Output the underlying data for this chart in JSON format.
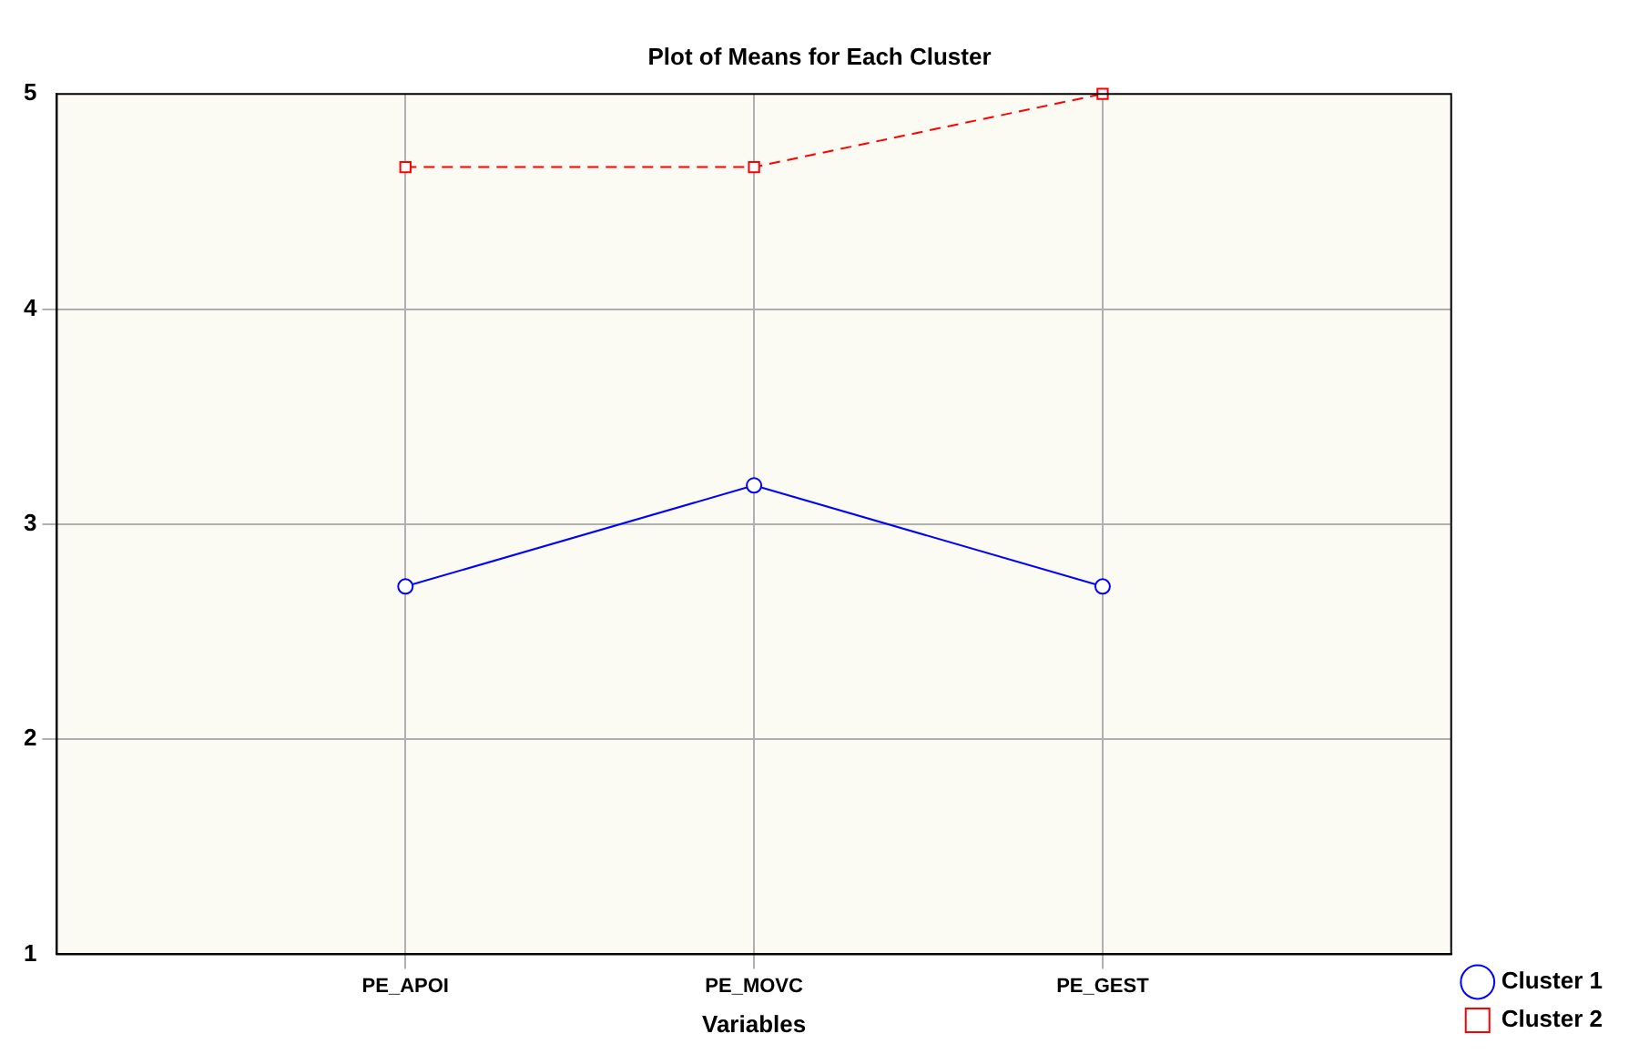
{
  "chart_data": {
    "type": "line",
    "title": "Plot of Means for Each Cluster",
    "xlabel": "Variables",
    "categories": [
      null,
      "PE_APOI",
      "PE_MOVC",
      "PE_GEST",
      null
    ],
    "series": [
      {
        "name": "Cluster 1",
        "color": "#0000ff",
        "values": [
          null,
          2.71,
          3.18,
          2.71,
          null
        ],
        "marker": "circle",
        "line_style": "solid"
      },
      {
        "name": "Cluster 2",
        "color": "#ff0000",
        "values": [
          null,
          4.66,
          4.66,
          5.0,
          null
        ],
        "marker": "square",
        "line_style": "dashed"
      }
    ],
    "ylim": [
      1,
      5
    ],
    "yticks": [
      1,
      2,
      3,
      4,
      5
    ],
    "grid": true,
    "legend": "bottom right"
  }
}
